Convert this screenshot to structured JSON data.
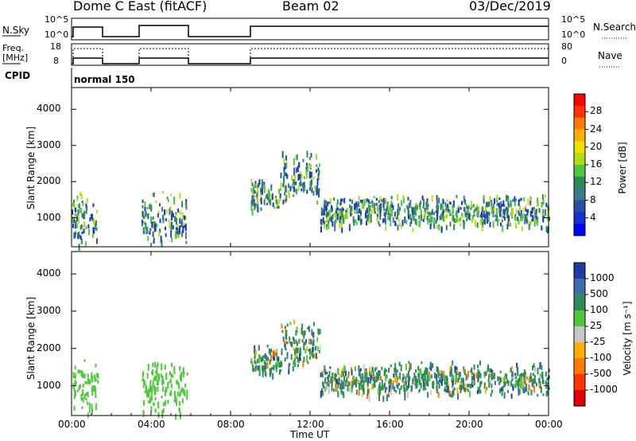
{
  "header": {
    "title": "Dome C East (fitACF)",
    "beam": "Beam 02",
    "date": "03/Dec/2019"
  },
  "panels": {
    "nsky": {
      "label": "N.Sky",
      "left_ticks": [
        "10^5",
        "10^0"
      ],
      "right_label": "N.Search",
      "right_ticks": [
        "10^5",
        "10^0"
      ]
    },
    "freq": {
      "label_line1": "Freq.",
      "label_line2": "[MHz]",
      "left_ticks": [
        "18",
        "8"
      ],
      "right_label": "Nave",
      "right_ticks": [
        "80",
        "0"
      ]
    },
    "cpid": {
      "label": "CPID",
      "value": "normal 150"
    }
  },
  "x_axis": {
    "label": "Time UT",
    "ticks": [
      "00:00",
      "04:00",
      "08:00",
      "12:00",
      "16:00",
      "20:00",
      "00:00"
    ]
  },
  "power_colorbar": {
    "label": "Power [dB]",
    "ticks": [
      "28",
      "24",
      "20",
      "16",
      "12",
      "8",
      "4"
    ],
    "colors": [
      "#ff0000",
      "#ff3300",
      "#ff7a00",
      "#ffb000",
      "#f0e000",
      "#b4dc14",
      "#50c83c",
      "#2e8b57",
      "#3c7a8c",
      "#2a4fa0",
      "#1432d2",
      "#0000ff"
    ]
  },
  "velocity_colorbar": {
    "label": "Velocity [m s⁻¹]",
    "ticks": [
      "1000",
      "500",
      "100",
      "25",
      "-25",
      "-100",
      "-500",
      "-1000"
    ],
    "colors": [
      "#1e3ca8",
      "#3c6eaa",
      "#2e8b57",
      "#50c83c",
      "#c8c8c8",
      "#ffb000",
      "#ff7a00",
      "#ff3300",
      "#e00000"
    ]
  },
  "chart_data": [
    {
      "type": "heatmap",
      "title": "Power",
      "xlabel": "Time UT",
      "ylabel": "Slant Range [km]",
      "ylim": [
        200,
        4600
      ],
      "y_ticks": [
        1000,
        2000,
        3000,
        4000
      ],
      "colorbar_label": "Power [dB]",
      "scatter_regions": [
        {
          "t_start": 0.0,
          "t_end": 1.3,
          "range_km": [
            200,
            1800
          ]
        },
        {
          "t_start": 3.5,
          "t_end": 5.8,
          "range_km": [
            200,
            1800
          ]
        },
        {
          "t_start": 9.0,
          "t_end": 10.5,
          "range_km": [
            1200,
            2200
          ]
        },
        {
          "t_start": 10.5,
          "t_end": 12.5,
          "range_km": [
            1400,
            2900
          ]
        },
        {
          "t_start": 12.5,
          "t_end": 24.0,
          "range_km": [
            700,
            1700
          ]
        }
      ]
    },
    {
      "type": "heatmap",
      "title": "Velocity",
      "xlabel": "Time UT",
      "ylabel": "Slant Range [km]",
      "ylim": [
        200,
        4600
      ],
      "y_ticks": [
        1000,
        2000,
        3000,
        4000
      ],
      "colorbar_label": "Velocity [m s⁻¹]",
      "scatter_regions": [
        {
          "t_start": 0.0,
          "t_end": 1.3,
          "range_km": [
            200,
            1800
          ]
        },
        {
          "t_start": 3.5,
          "t_end": 5.8,
          "range_km": [
            200,
            1800
          ]
        },
        {
          "t_start": 9.0,
          "t_end": 10.5,
          "range_km": [
            1200,
            2200
          ]
        },
        {
          "t_start": 10.5,
          "t_end": 12.5,
          "range_km": [
            1400,
            2900
          ]
        },
        {
          "t_start": 12.5,
          "t_end": 24.0,
          "range_km": [
            700,
            1700
          ]
        }
      ]
    }
  ]
}
